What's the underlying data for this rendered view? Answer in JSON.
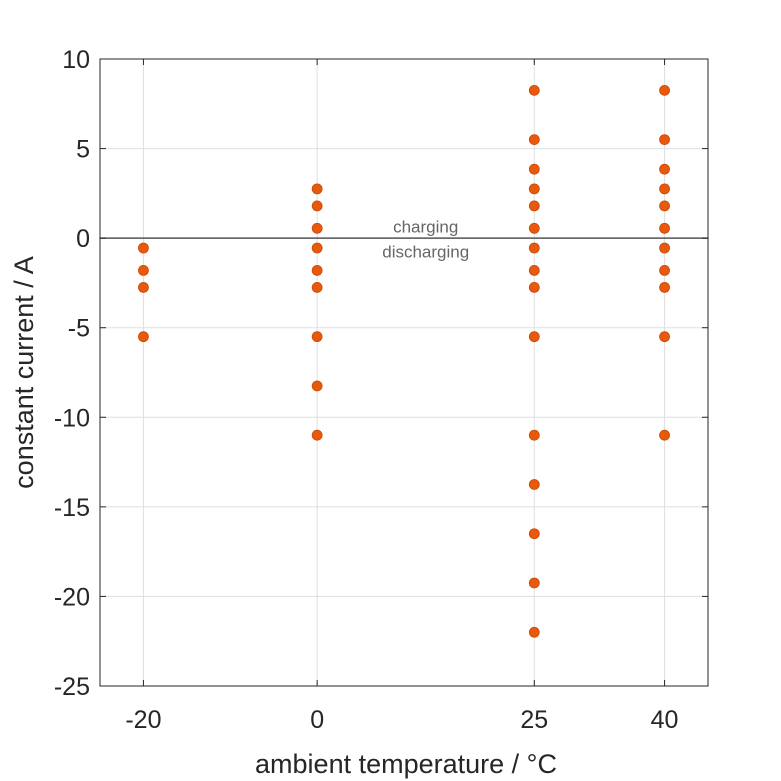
{
  "chart_data": {
    "type": "scatter",
    "xlabel": "ambient temperature / °C",
    "ylabel": "constant current / A",
    "x_ticks": [
      {
        "value": -20,
        "label": "-20"
      },
      {
        "value": 0,
        "label": "0"
      },
      {
        "value": 25,
        "label": "25"
      },
      {
        "value": 40,
        "label": "40"
      }
    ],
    "xlim": [
      -25,
      45
    ],
    "y_ticks": [
      {
        "value": 10,
        "label": "10"
      },
      {
        "value": 5,
        "label": "5"
      },
      {
        "value": 0,
        "label": "0"
      },
      {
        "value": -5,
        "label": "-5"
      },
      {
        "value": -10,
        "label": "-10"
      },
      {
        "value": -15,
        "label": "-15"
      },
      {
        "value": -20,
        "label": "-20"
      },
      {
        "value": -25,
        "label": "-25"
      }
    ],
    "ylim": [
      -25,
      10
    ],
    "grid": true,
    "marker_color": "#E8590C",
    "reference_line": {
      "y": 0,
      "color": "#555555"
    },
    "annotations": [
      {
        "text": "charging",
        "x": 12.5,
        "y": 0.65
      },
      {
        "text": "discharging",
        "x": 12.5,
        "y": -0.75
      }
    ],
    "points": [
      {
        "x": -20,
        "y": -0.55
      },
      {
        "x": -20,
        "y": -1.8
      },
      {
        "x": -20,
        "y": -2.75
      },
      {
        "x": -20,
        "y": -5.5
      },
      {
        "x": 0,
        "y": 2.75
      },
      {
        "x": 0,
        "y": 1.8
      },
      {
        "x": 0,
        "y": 0.55
      },
      {
        "x": 0,
        "y": -0.55
      },
      {
        "x": 0,
        "y": -1.8
      },
      {
        "x": 0,
        "y": -2.75
      },
      {
        "x": 0,
        "y": -5.5
      },
      {
        "x": 0,
        "y": -8.25
      },
      {
        "x": 0,
        "y": -11
      },
      {
        "x": 25,
        "y": 8.25
      },
      {
        "x": 25,
        "y": 5.5
      },
      {
        "x": 25,
        "y": 3.85
      },
      {
        "x": 25,
        "y": 2.75
      },
      {
        "x": 25,
        "y": 1.8
      },
      {
        "x": 25,
        "y": 0.55
      },
      {
        "x": 25,
        "y": -0.55
      },
      {
        "x": 25,
        "y": -1.8
      },
      {
        "x": 25,
        "y": -2.75
      },
      {
        "x": 25,
        "y": -5.5
      },
      {
        "x": 25,
        "y": -11
      },
      {
        "x": 25,
        "y": -13.75
      },
      {
        "x": 25,
        "y": -16.5
      },
      {
        "x": 25,
        "y": -19.25
      },
      {
        "x": 25,
        "y": -22
      },
      {
        "x": 40,
        "y": 8.25
      },
      {
        "x": 40,
        "y": 5.5
      },
      {
        "x": 40,
        "y": 3.85
      },
      {
        "x": 40,
        "y": 2.75
      },
      {
        "x": 40,
        "y": 1.8
      },
      {
        "x": 40,
        "y": 0.55
      },
      {
        "x": 40,
        "y": -0.55
      },
      {
        "x": 40,
        "y": -1.8
      },
      {
        "x": 40,
        "y": -2.75
      },
      {
        "x": 40,
        "y": -5.5
      },
      {
        "x": 40,
        "y": -11
      }
    ]
  }
}
